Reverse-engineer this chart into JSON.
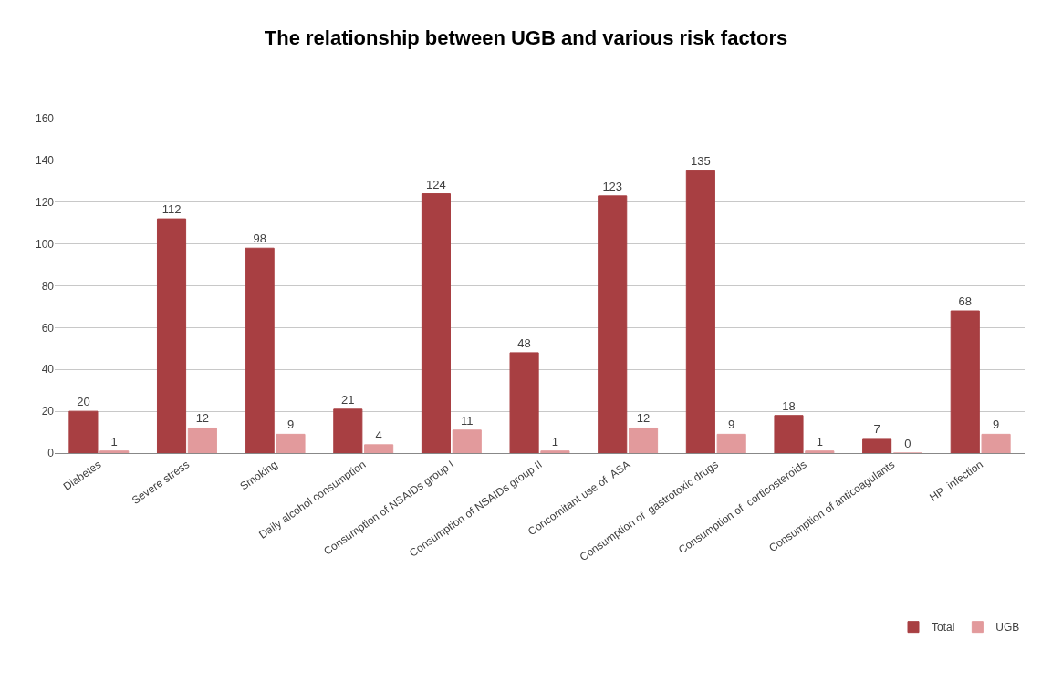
{
  "chart_data": {
    "type": "bar",
    "title": "The relationship between UGB and various risk factors",
    "categories": [
      "Diabetes",
      "Severe stress",
      "Smoking",
      "Daily alcohol consumption",
      "Consumption of NSAIDs group I",
      "Consumption of NSAIDs group II",
      "Concomitant use of  ASA",
      "Consumption of  gastrotoxic drugs",
      "Consumption of  corticosteroids",
      "Consumption of anticoagulants",
      "HP  infection"
    ],
    "series": [
      {
        "name": "Total",
        "color": "#a83f42",
        "values": [
          20,
          112,
          98,
          21,
          124,
          48,
          123,
          135,
          18,
          7,
          68
        ]
      },
      {
        "name": "UGB",
        "color": "#e29a9c",
        "values": [
          1,
          12,
          9,
          4,
          11,
          1,
          12,
          9,
          1,
          0,
          9
        ]
      }
    ],
    "ylim": [
      0,
      160
    ],
    "yticks": [
      0,
      20,
      40,
      60,
      80,
      100,
      120,
      140,
      160
    ],
    "grid": "y",
    "legend": "bottom right",
    "data_labels": true
  }
}
